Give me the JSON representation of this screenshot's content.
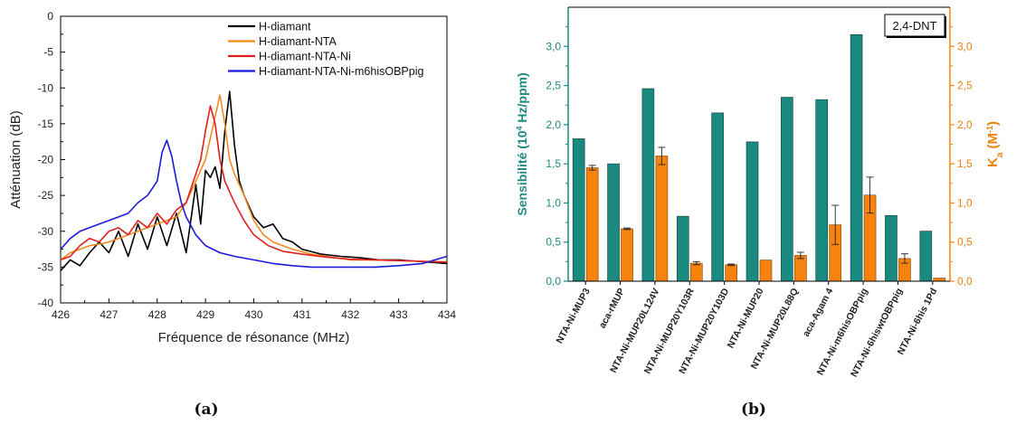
{
  "chart_data": [
    {
      "type": "line",
      "panel_label": "(a)",
      "xlabel": "Fréquence de résonance (MHz)",
      "ylabel": "Atténuation (dB)",
      "xlim": [
        426,
        434
      ],
      "ylim": [
        -40,
        0
      ],
      "xticks": [
        426,
        427,
        428,
        429,
        430,
        431,
        432,
        433,
        434
      ],
      "yticks": [
        0,
        -5,
        -10,
        -15,
        -20,
        -25,
        -30,
        -35,
        -40
      ],
      "grid": false,
      "legend_position": "top-right",
      "series": [
        {
          "name": "H-diamant",
          "color": "#000000",
          "x": [
            426.0,
            426.2,
            426.4,
            426.6,
            426.8,
            427.0,
            427.2,
            427.4,
            427.6,
            427.8,
            428.0,
            428.2,
            428.4,
            428.6,
            428.8,
            428.9,
            429.0,
            429.1,
            429.2,
            429.3,
            429.4,
            429.5,
            429.6,
            429.7,
            429.8,
            430.0,
            430.2,
            430.4,
            430.6,
            430.8,
            431.0,
            431.4,
            431.8,
            432.2,
            432.6,
            433.0,
            433.4,
            434.0
          ],
          "y": [
            -35.5,
            -34.0,
            -34.8,
            -33.0,
            -31.5,
            -33.0,
            -30.0,
            -33.5,
            -29.0,
            -32.5,
            -28.0,
            -32.0,
            -27.5,
            -33.0,
            -23.5,
            -29.0,
            -21.5,
            -22.5,
            -21.0,
            -24.0,
            -16.0,
            -10.5,
            -18.0,
            -23.0,
            -25.0,
            -28.0,
            -29.5,
            -29.0,
            -31.0,
            -31.5,
            -32.5,
            -33.2,
            -33.5,
            -33.7,
            -34.0,
            -34.0,
            -34.2,
            -34.5
          ]
        },
        {
          "name": "H-diamant-NTA",
          "color": "#f28a1e",
          "x": [
            426.0,
            426.2,
            426.4,
            426.6,
            426.8,
            427.0,
            427.2,
            427.4,
            427.6,
            427.8,
            428.0,
            428.2,
            428.4,
            428.6,
            428.8,
            429.0,
            429.2,
            429.3,
            429.4,
            429.5,
            429.6,
            429.8,
            430.0,
            430.2,
            430.4,
            430.8,
            431.2,
            431.6,
            432.0,
            432.5,
            433.0,
            433.5,
            434.0
          ],
          "y": [
            -34.0,
            -33.0,
            -32.5,
            -32.0,
            -31.8,
            -31.5,
            -31.0,
            -30.5,
            -30.0,
            -29.5,
            -29.0,
            -28.5,
            -28.0,
            -26.0,
            -23.0,
            -20.0,
            -14.0,
            -11.0,
            -15.0,
            -20.0,
            -22.0,
            -25.0,
            -28.5,
            -30.5,
            -31.5,
            -32.5,
            -33.2,
            -33.6,
            -34.0,
            -34.0,
            -34.1,
            -34.2,
            -34.3
          ]
        },
        {
          "name": "H-diamant-NTA-Ni",
          "color": "#e02020",
          "x": [
            426.0,
            426.2,
            426.4,
            426.6,
            426.8,
            427.0,
            427.2,
            427.4,
            427.6,
            427.8,
            428.0,
            428.2,
            428.4,
            428.6,
            428.8,
            428.9,
            429.0,
            429.1,
            429.2,
            429.3,
            429.4,
            429.6,
            429.8,
            430.0,
            430.3,
            430.6,
            431.0,
            431.5,
            432.0,
            432.5,
            433.0,
            433.5,
            434.0
          ],
          "y": [
            -34.0,
            -33.5,
            -32.0,
            -31.0,
            -31.5,
            -30.0,
            -29.5,
            -30.5,
            -28.5,
            -29.5,
            -27.5,
            -29.0,
            -27.0,
            -26.0,
            -22.0,
            -20.0,
            -16.0,
            -12.5,
            -15.0,
            -20.0,
            -23.0,
            -26.0,
            -28.5,
            -30.5,
            -32.0,
            -32.8,
            -33.2,
            -33.6,
            -33.9,
            -34.0,
            -34.1,
            -34.2,
            -34.3
          ]
        },
        {
          "name": "H-diamant-NTA-Ni-m6hisOBPpig",
          "color": "#1a1ad8",
          "x": [
            426.0,
            426.2,
            426.4,
            426.6,
            426.8,
            427.0,
            427.2,
            427.4,
            427.6,
            427.8,
            428.0,
            428.1,
            428.2,
            428.3,
            428.4,
            428.5,
            428.6,
            428.8,
            429.0,
            429.3,
            429.6,
            430.0,
            430.4,
            430.8,
            431.2,
            431.6,
            432.0,
            432.5,
            433.0,
            433.5,
            434.0
          ],
          "y": [
            -32.5,
            -31.0,
            -30.0,
            -29.5,
            -29.0,
            -28.5,
            -28.0,
            -27.5,
            -26.0,
            -25.0,
            -23.0,
            -19.0,
            -17.3,
            -19.5,
            -23.0,
            -26.0,
            -28.0,
            -30.5,
            -32.0,
            -33.0,
            -33.5,
            -34.0,
            -34.5,
            -34.8,
            -35.0,
            -35.0,
            -35.0,
            -35.0,
            -34.8,
            -34.5,
            -33.5
          ]
        }
      ]
    },
    {
      "type": "bar",
      "panel_label": "(b)",
      "annotation": "2,4-DNT",
      "ylabel_left_parts": [
        "Sensibilité (10",
        "4",
        " Hz/ppm)"
      ],
      "ylabel_right_parts": [
        "K",
        "a",
        " (M",
        "-1",
        ")"
      ],
      "ylim_left": [
        0,
        3.5
      ],
      "ylim_right": [
        0,
        3.5
      ],
      "yticks_left": [
        "0,0",
        "0,5",
        "1,0",
        "1,5",
        "2,0",
        "2,5",
        "3,0"
      ],
      "yticks_right": [
        "0,0",
        "0,5",
        "1,0",
        "1,5",
        "2,0",
        "2,5",
        "3,0"
      ],
      "categories": [
        "NTA-Ni-MUP3",
        "aca-rMUP",
        "NTA-Ni-MUP20L124V",
        "NTA-Ni-MUP20Y103R",
        "NTA-Ni-MUP20Y103D",
        "NTA-Ni-MUP20",
        "NTA-Ni-MUP20L88Q",
        "aca-Agam 4",
        "NTA-Ni-m6hisOBPpig",
        "NTA-Ni-6hiswtOBPpig",
        "NTA-Ni-6his 1Pd"
      ],
      "series": [
        {
          "name": "Sensibilité",
          "axis": "left",
          "color": "#1a8a80",
          "values": [
            1.82,
            1.5,
            2.46,
            0.83,
            2.15,
            1.78,
            2.35,
            2.32,
            3.15,
            0.84,
            0.64
          ]
        },
        {
          "name": "Ka",
          "axis": "right",
          "color": "#f7830f",
          "values": [
            1.45,
            0.67,
            1.6,
            0.23,
            0.21,
            0.27,
            0.33,
            0.72,
            1.1,
            0.29,
            0.04
          ],
          "errors": [
            0.03,
            0.01,
            0.11,
            0.02,
            0.01,
            0.0,
            0.04,
            0.25,
            0.23,
            0.06,
            0.0
          ]
        }
      ]
    }
  ]
}
